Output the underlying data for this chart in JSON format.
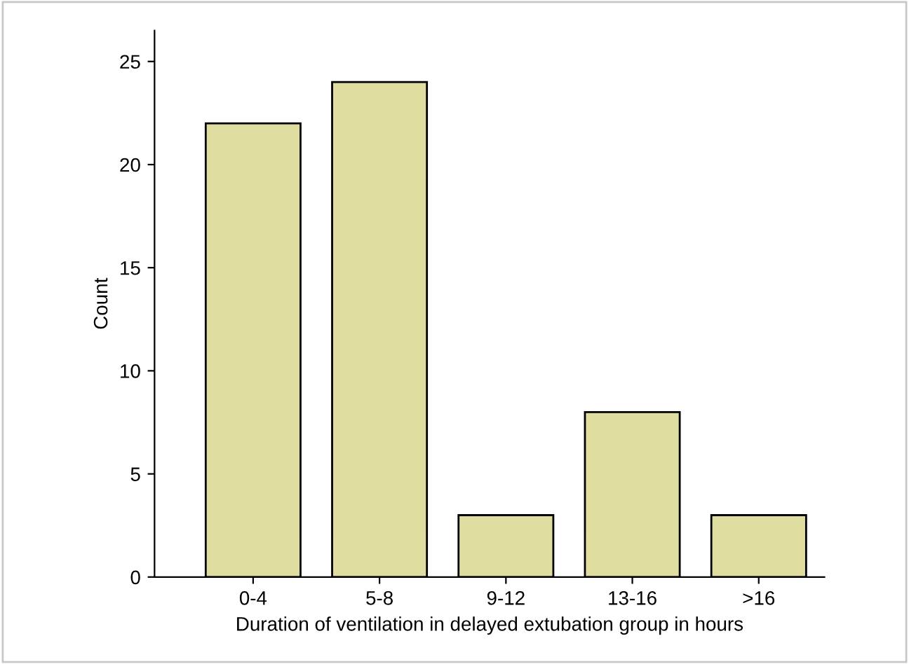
{
  "chart_data": {
    "type": "bar",
    "xlabel": "Duration of ventilation in delayed extubation group in hours",
    "ylabel": "Count",
    "categories": [
      "0-4",
      "5-8",
      "9-12",
      "13-16",
      ">16"
    ],
    "values": [
      22,
      24,
      3,
      8,
      3
    ],
    "color": "#e0dda0",
    "ylim": [
      0,
      26.5
    ],
    "yticks": [
      0,
      5,
      10,
      15,
      20,
      25
    ],
    "grid": false
  }
}
